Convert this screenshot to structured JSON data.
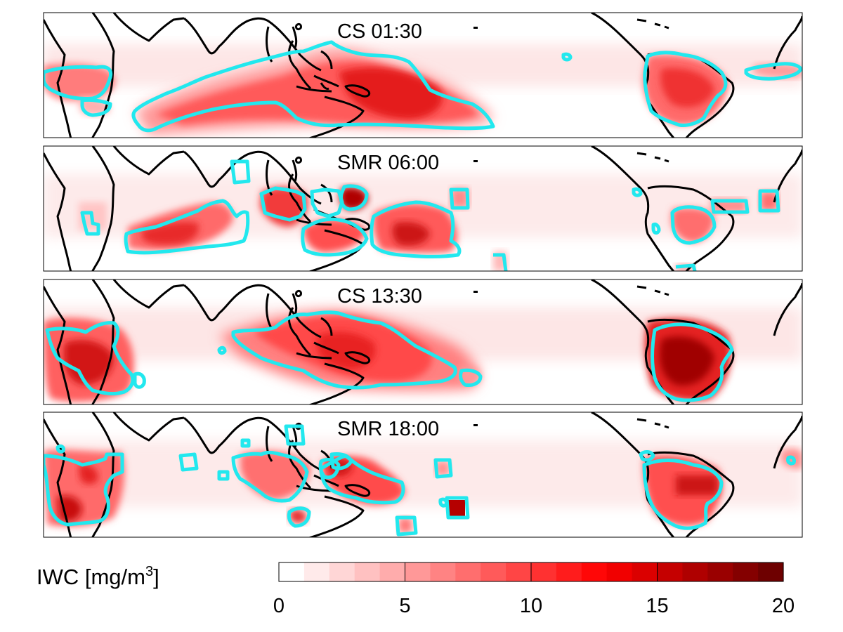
{
  "figure": {
    "panels": [
      {
        "title": "CS 01:30"
      },
      {
        "title": "SMR 06:00"
      },
      {
        "title": "CS 13:30"
      },
      {
        "title": "SMR 18:00"
      }
    ],
    "colorbar": {
      "label_main": "IWC [mg/m",
      "label_sup": "3",
      "label_end": "]",
      "min": 0,
      "max": 20,
      "levels": 20,
      "ticks": [
        "0",
        "5",
        "10",
        "15",
        "20"
      ],
      "color_low": "#ffffff",
      "color_high": "#6e0000",
      "contour_color": "#22e8ee",
      "coast_color": "#000000"
    }
  }
}
